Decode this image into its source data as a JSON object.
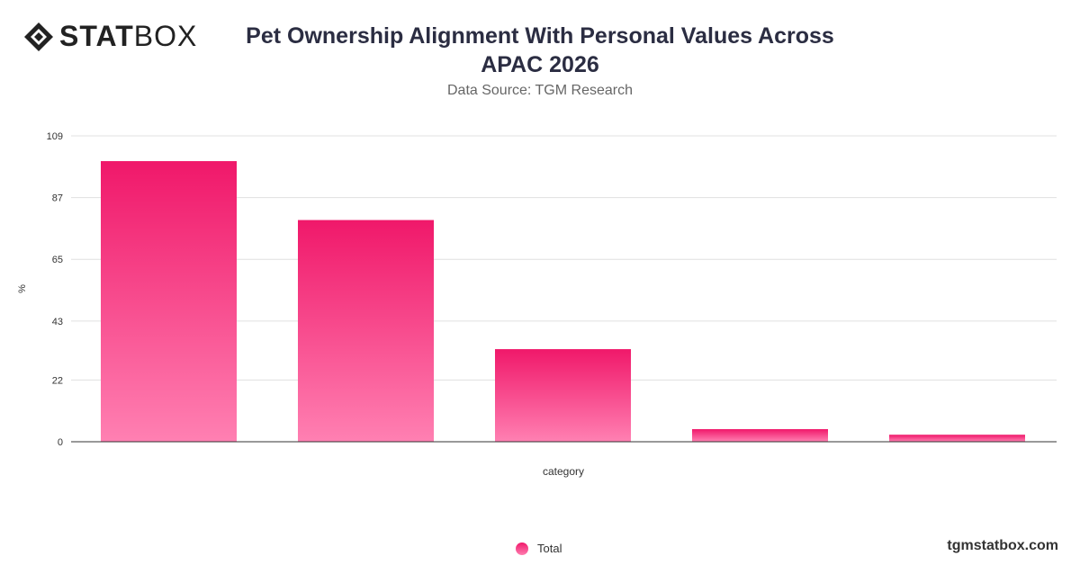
{
  "header": {
    "logo_text_bold": "STAT",
    "logo_text_light": "BOX",
    "title": "Pet Ownership Alignment With Personal Values Across APAC 2026",
    "subtitle": "Data Source: TGM Research"
  },
  "footer": {
    "url": "tgmstatbox.com"
  },
  "colors": {
    "bar_top": "#f0186a",
    "bar_bottom": "#ff80b2",
    "grid": "#e0e0e0",
    "axis": "#333333"
  },
  "chart_data": {
    "type": "bar",
    "categories": [
      "",
      "",
      "",
      "",
      ""
    ],
    "series": [
      {
        "name": "Total",
        "values": [
          100,
          79,
          33,
          4.5,
          2.5
        ]
      }
    ],
    "xlabel": "category",
    "ylabel": "%",
    "ylim": [
      0,
      109
    ],
    "yticks": [
      0,
      22,
      43,
      65,
      87,
      109
    ],
    "grid": true,
    "legend_position": "bottom-center"
  }
}
